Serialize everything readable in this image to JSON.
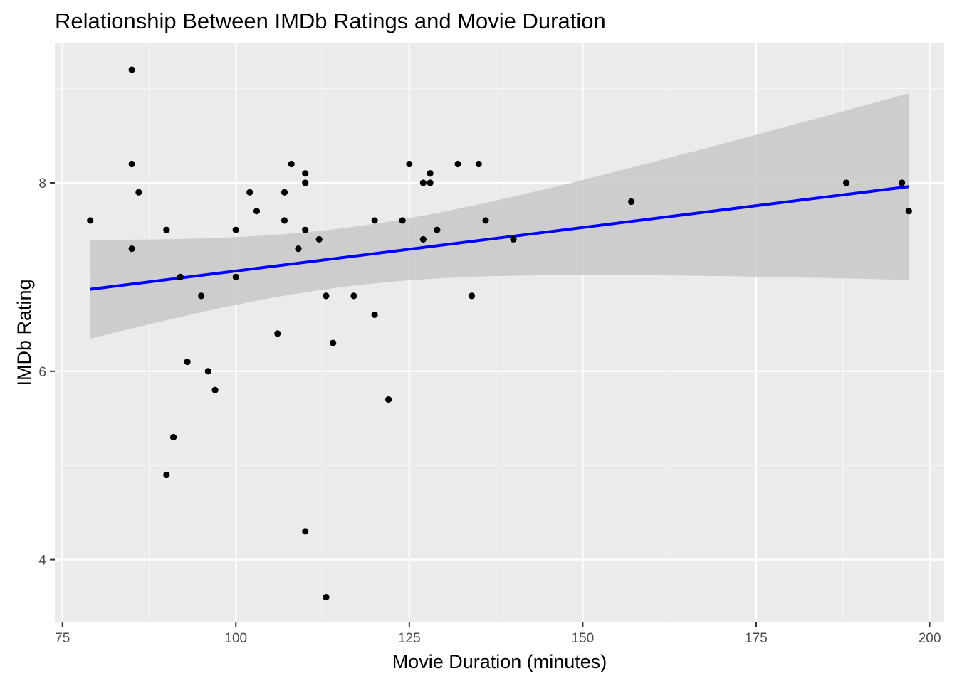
{
  "chart_data": {
    "type": "scatter",
    "title": "Relationship Between IMDb Ratings and Movie Duration",
    "xlabel": "Movie Duration (minutes)",
    "ylabel": "IMDb Rating",
    "xlim": [
      73.9,
      202.1
    ],
    "ylim": [
      3.34,
      9.48
    ],
    "x_ticks": [
      75,
      100,
      125,
      150,
      175,
      200
    ],
    "x_tick_labels": [
      "75",
      "100",
      "125",
      "150",
      "175",
      "200"
    ],
    "y_ticks": [
      4,
      6,
      8
    ],
    "y_tick_labels": [
      "4",
      "6",
      "8"
    ],
    "grid": true,
    "legend": "none",
    "series": [
      {
        "type": "scatter",
        "x": [
          79,
          85,
          85,
          85,
          86,
          90,
          90,
          91,
          92,
          93,
          95,
          96,
          97,
          100,
          100,
          102,
          103,
          106,
          107,
          107,
          108,
          109,
          110,
          110,
          110,
          110,
          112,
          113,
          113,
          114,
          117,
          120,
          120,
          122,
          124,
          125,
          127,
          127,
          128,
          128,
          129,
          132,
          134,
          135,
          136,
          140,
          157,
          188,
          196,
          197
        ],
        "y": [
          7.6,
          9.2,
          8.2,
          7.3,
          7.9,
          7.5,
          4.9,
          5.3,
          7.0,
          6.1,
          6.8,
          6.0,
          5.8,
          7.5,
          7.0,
          7.9,
          7.7,
          6.4,
          7.9,
          7.6,
          8.2,
          7.3,
          8.1,
          8.0,
          7.5,
          4.3,
          7.4,
          6.8,
          3.6,
          6.3,
          6.8,
          7.6,
          6.6,
          5.7,
          7.6,
          8.2,
          8.0,
          7.4,
          8.1,
          8.0,
          7.5,
          8.2,
          6.8,
          8.2,
          7.6,
          7.4,
          7.8,
          8.0,
          8.0,
          7.7
        ]
      },
      {
        "type": "line",
        "method": "linear fit with confidence band",
        "x": [
          79,
          197
        ],
        "y": [
          6.87,
          7.96
        ],
        "ci_lower": [
          6.34,
          6.97
        ],
        "ci_upper": [
          7.39,
          8.95
        ]
      }
    ]
  },
  "colors": {
    "panel_background": "#EBEBEB",
    "grid_major": "#FFFFFF",
    "grid_minor": "#F5F5F5",
    "points": "#000000",
    "trend_line": "#0000FF",
    "confidence_band": "#C8C8C8",
    "tick_text": "#4D4D4D",
    "tick_mark": "#333333"
  }
}
